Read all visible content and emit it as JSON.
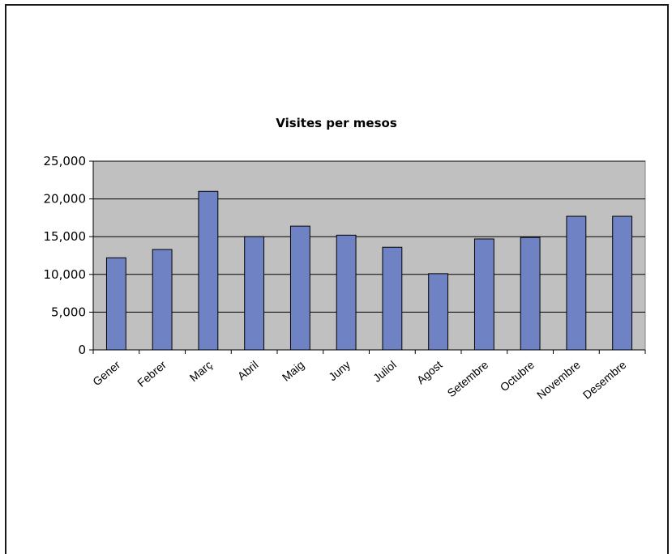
{
  "chart_data": {
    "type": "bar",
    "title": "Visites per mesos",
    "xlabel": "",
    "ylabel": "",
    "categories": [
      "Gener",
      "Febrer",
      "Març",
      "Abril",
      "Maig",
      "Juny",
      "Juliol",
      "Agost",
      "Setembre",
      "Octubre",
      "Novembre",
      "Desembre"
    ],
    "values": [
      12200,
      13300,
      21000,
      15000,
      16400,
      15200,
      13600,
      10100,
      14700,
      14900,
      17700,
      17700
    ],
    "ylim": [
      0,
      25000
    ],
    "yticks": [
      0,
      5000,
      10000,
      15000,
      20000,
      25000
    ],
    "ytick_labels": [
      "0",
      "5,000",
      "10,000",
      "15,000",
      "20,000",
      "25,000"
    ],
    "grid": true,
    "legend": "none",
    "colors": {
      "bar_fill": "#6f83c4",
      "bar_stroke": "#000000",
      "plot_background": "#c0c0c0",
      "gridline": "#000000"
    }
  }
}
